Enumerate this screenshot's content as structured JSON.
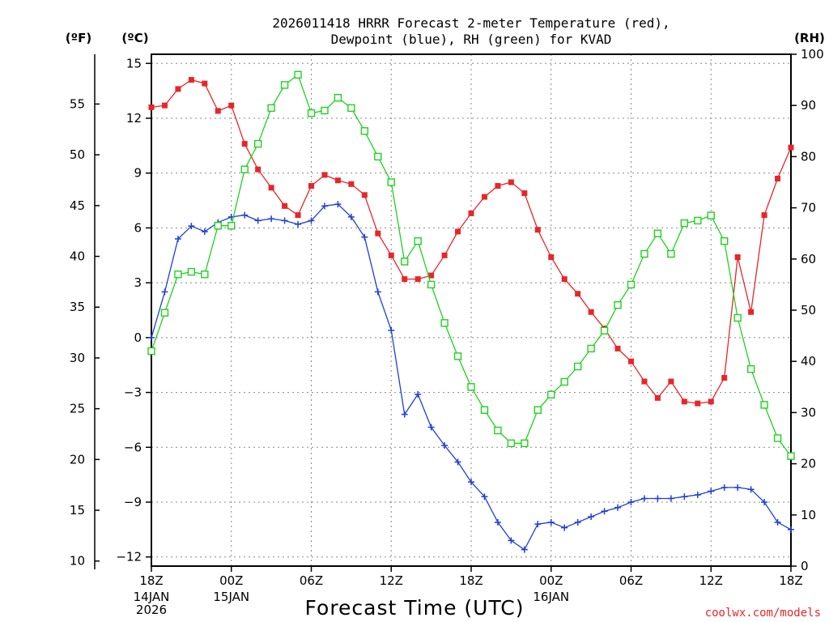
{
  "chart_data": {
    "type": "line",
    "title": [
      "2026011418 HRRR Forecast 2-meter Temperature (red),",
      "Dewpoint (blue), RH (green) for KVAD"
    ],
    "unit_labels": {
      "fahrenheit": "(ºF)",
      "celsius": "(ºC)",
      "rh": "(RH)"
    },
    "xlabel": "Forecast Time (UTC)",
    "credit": "coolwx.com/models",
    "colors": {
      "temperature": "#e8252a",
      "dewpoint": "#1f3fd8",
      "rh": "#1ed21e"
    },
    "x_range_hours": [
      0,
      48
    ],
    "x_ticks": [
      {
        "hour": 0,
        "label": "18Z"
      },
      {
        "hour": 6,
        "label": "00Z"
      },
      {
        "hour": 12,
        "label": "06Z"
      },
      {
        "hour": 18,
        "label": "12Z"
      },
      {
        "hour": 24,
        "label": "18Z"
      },
      {
        "hour": 30,
        "label": "00Z"
      },
      {
        "hour": 36,
        "label": "06Z"
      },
      {
        "hour": 42,
        "label": "12Z"
      },
      {
        "hour": 48,
        "label": "18Z"
      }
    ],
    "date_labels": [
      {
        "hour": 0,
        "lines": [
          "14JAN",
          "2026"
        ]
      },
      {
        "hour": 6,
        "lines": [
          "15JAN"
        ]
      },
      {
        "hour": 30,
        "lines": [
          "16JAN"
        ]
      }
    ],
    "celsius_axis": {
      "range": [
        -12.5,
        15.5
      ],
      "ticks": [
        15,
        12,
        9,
        6,
        3,
        0,
        -3,
        -6,
        -9,
        -12
      ],
      "tick_labels": [
        "15",
        "12",
        "9",
        "6",
        "3",
        "0",
        "−3",
        "−6",
        "−9",
        "−12"
      ]
    },
    "fahrenheit_axis": {
      "ticks": [
        10,
        15,
        20,
        25,
        30,
        35,
        40,
        45,
        50,
        55
      ]
    },
    "rh_axis": {
      "range": [
        0,
        100
      ],
      "ticks": [
        0,
        10,
        20,
        30,
        40,
        50,
        60,
        70,
        80,
        90,
        100
      ]
    },
    "series": [
      {
        "name": "2-meter Temperature (red)",
        "unit": "C",
        "values": [
          12.6,
          12.7,
          13.6,
          14.1,
          13.9,
          12.4,
          12.7,
          10.6,
          9.2,
          8.2,
          7.2,
          6.7,
          8.3,
          8.9,
          8.6,
          8.4,
          7.8,
          5.7,
          4.5,
          3.2,
          3.2,
          3.4,
          4.5,
          5.8,
          6.8,
          7.7,
          8.3,
          8.5,
          7.9,
          5.9,
          4.4,
          3.2,
          2.4,
          1.4,
          0.5,
          -0.6,
          -1.3,
          -2.4,
          -3.3,
          -2.4,
          -3.5,
          -3.6,
          -3.5,
          -2.2,
          4.4,
          1.4,
          6.7,
          8.7,
          10.4
        ]
      },
      {
        "name": "Dewpoint (blue)",
        "unit": "C",
        "values": [
          0.0,
          2.5,
          5.4,
          6.1,
          5.8,
          6.3,
          6.6,
          6.7,
          6.4,
          6.5,
          6.4,
          6.2,
          6.4,
          7.2,
          7.3,
          6.6,
          5.5,
          2.5,
          0.4,
          -4.2,
          -3.1,
          -4.9,
          -5.9,
          -6.8,
          -7.9,
          -8.7,
          -10.1,
          -11.1,
          -11.6,
          -10.2,
          -10.1,
          -10.4,
          -10.1,
          -9.8,
          -9.5,
          -9.3,
          -9.0,
          -8.8,
          -8.8,
          -8.8,
          -8.7,
          -8.6,
          -8.4,
          -8.2,
          -8.2,
          -8.3,
          -9.0,
          -10.1,
          -10.5
        ]
      },
      {
        "name": "RH (green)",
        "unit": "%",
        "values": [
          42,
          49.5,
          57,
          57.5,
          57,
          66.5,
          66.5,
          77.5,
          82.5,
          89.5,
          94,
          96,
          88.5,
          89,
          91.5,
          89.5,
          85,
          80,
          75,
          59.5,
          63.5,
          55,
          47.5,
          41,
          35,
          30.5,
          26.5,
          24,
          24,
          30.5,
          33.5,
          36,
          39,
          42.5,
          46,
          51,
          55,
          61,
          65,
          61,
          67,
          67.5,
          68.5,
          63.5,
          48.5,
          38.5,
          31.5,
          25,
          21.5
        ]
      }
    ]
  }
}
